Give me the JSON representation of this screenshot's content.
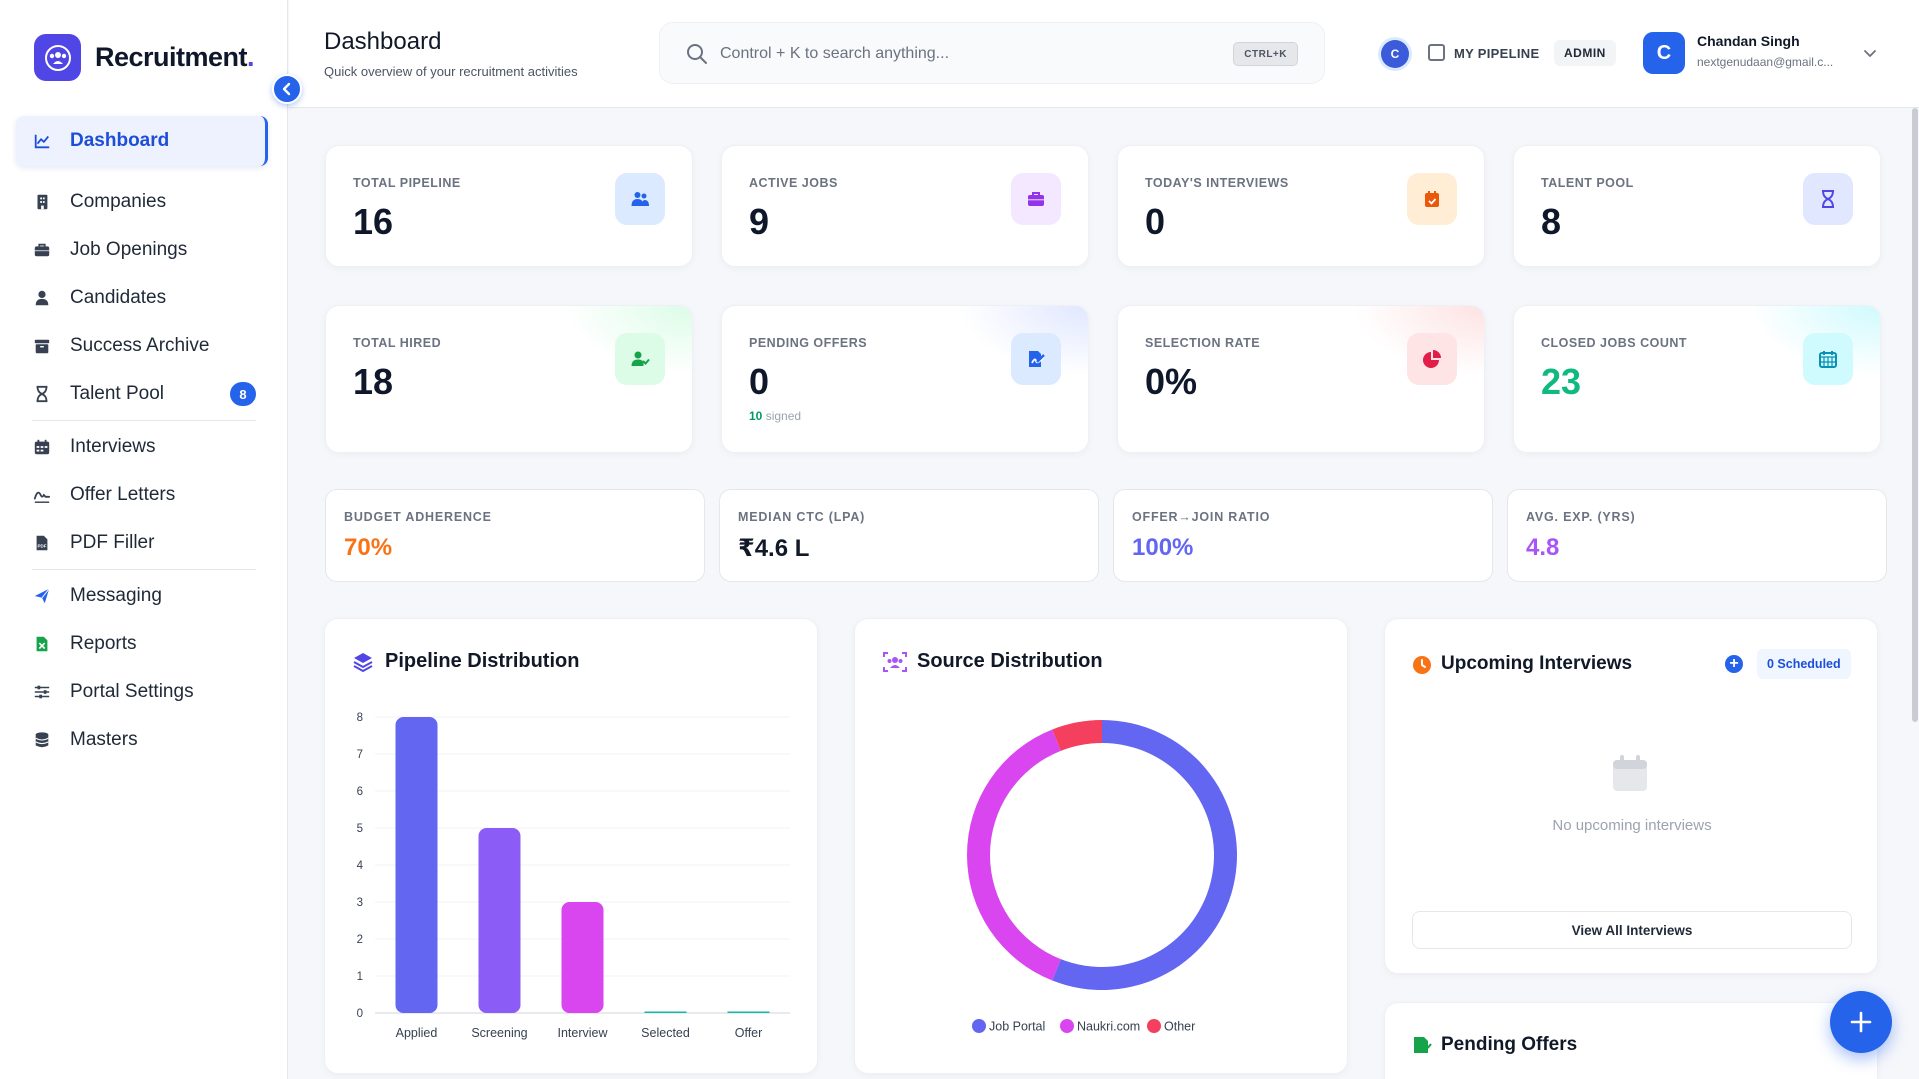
{
  "brand": {
    "name": "Recruitment",
    "dot": ".",
    "accent": "#4f46e5"
  },
  "sidebar": {
    "items": [
      {
        "label": "Dashboard",
        "icon": "chart-line-icon",
        "active": true
      },
      {
        "label": "Companies",
        "icon": "building-icon"
      },
      {
        "label": "Job Openings",
        "icon": "briefcase-icon"
      },
      {
        "label": "Candidates",
        "icon": "user-icon"
      },
      {
        "label": "Success Archive",
        "icon": "archive-icon"
      },
      {
        "label": "Talent Pool",
        "icon": "hourglass-icon",
        "badge": "8"
      },
      {
        "label": "Interviews",
        "icon": "calendar-icon"
      },
      {
        "label": "Offer Letters",
        "icon": "signature-icon"
      },
      {
        "label": "PDF Filler",
        "icon": "pdf-file-icon"
      },
      {
        "label": "Messaging",
        "icon": "paper-plane-icon"
      },
      {
        "label": "Reports",
        "icon": "excel-file-icon"
      },
      {
        "label": "Portal Settings",
        "icon": "sliders-icon"
      },
      {
        "label": "Masters",
        "icon": "database-icon"
      }
    ]
  },
  "header": {
    "title": "Dashboard",
    "subtitle": "Quick overview of your recruitment activities",
    "search_placeholder": "Control + K to search anything...",
    "shortcut": "CTRL+K",
    "small_avatar": "C",
    "pipeline_label": "MY PIPELINE",
    "role": "ADMIN",
    "user": {
      "initial": "C",
      "name": "Chandan Singh",
      "email": "nextgenudaan@gmail.c..."
    }
  },
  "stats": [
    {
      "label": "TOTAL PIPELINE",
      "value": "16",
      "icon": "users-icon",
      "icon_bg": "#dbeafe",
      "icon_color": "#2563eb"
    },
    {
      "label": "ACTIVE JOBS",
      "value": "9",
      "icon": "briefcase-icon",
      "icon_bg": "#f3e8ff",
      "icon_color": "#9333ea"
    },
    {
      "label": "TODAY'S INTERVIEWS",
      "value": "0",
      "icon": "calendar-check-icon",
      "icon_bg": "#ffedd5",
      "icon_color": "#ea580c"
    },
    {
      "label": "TALENT POOL",
      "value": "8",
      "icon": "hourglass-icon",
      "icon_bg": "#e0e7ff",
      "icon_color": "#4f46e5"
    },
    {
      "label": "TOTAL HIRED",
      "value": "18",
      "icon": "user-check-icon",
      "icon_bg": "#dcfce7",
      "icon_color": "#16a34a"
    },
    {
      "label": "PENDING OFFERS",
      "value": "0",
      "sub_count": "10",
      "sub_text": "signed",
      "icon": "file-signature-icon",
      "icon_bg": "#dbeafe",
      "icon_color": "#2563eb"
    },
    {
      "label": "SELECTION RATE",
      "value": "0%",
      "icon": "pie-chart-icon",
      "icon_bg": "#ffe4e6",
      "icon_color": "#e11d48"
    },
    {
      "label": "CLOSED JOBS COUNT",
      "value": "23",
      "value_color": "#10b981",
      "icon": "calendar-grid-icon",
      "icon_bg": "#cffafe",
      "icon_color": "#0891b2"
    }
  ],
  "metrics": [
    {
      "label": "BUDGET ADHERENCE",
      "value": "70%",
      "color": "#f97316"
    },
    {
      "label": "MEDIAN CTC (LPA)",
      "value": "₹4.6 L",
      "color": "#111827"
    },
    {
      "label": "OFFER→JOIN RATIO",
      "value": "100%",
      "color": "#6366f1"
    },
    {
      "label": "AVG. EXP. (YRS)",
      "value": "4.8",
      "color": "#a855f7"
    }
  ],
  "pipeline_panel": {
    "title": "Pipeline Distribution"
  },
  "source_panel": {
    "title": "Source Distribution"
  },
  "interviews_panel": {
    "title": "Upcoming Interviews",
    "scheduled": "0 Scheduled",
    "empty": "No upcoming interviews",
    "view_all": "View All Interviews"
  },
  "pending_panel": {
    "title": "Pending Offers"
  },
  "chart_data": [
    {
      "type": "bar",
      "title": "Pipeline Distribution",
      "categories": [
        "Applied",
        "Screening",
        "Interview",
        "Selected",
        "Offer"
      ],
      "values": [
        8,
        5,
        3,
        0,
        0
      ],
      "colors": [
        "#6366f1",
        "#8b5cf6",
        "#d946ef",
        "#14b8a6",
        "#14b8a6"
      ],
      "yticks": [
        "0",
        "1",
        "2",
        "3",
        "4",
        "5",
        "6",
        "7",
        "8"
      ],
      "ylim": [
        0,
        8
      ],
      "grid": true
    },
    {
      "type": "pie",
      "title": "Source Distribution",
      "donut": true,
      "series": [
        {
          "name": "Job Portal",
          "value": 0.56,
          "color": "#6366f1"
        },
        {
          "name": "Naukri.com",
          "value": 0.38,
          "color": "#d946ef"
        },
        {
          "name": "Other",
          "value": 0.06,
          "color": "#f43f5e"
        }
      ],
      "legend": "bottom"
    }
  ]
}
